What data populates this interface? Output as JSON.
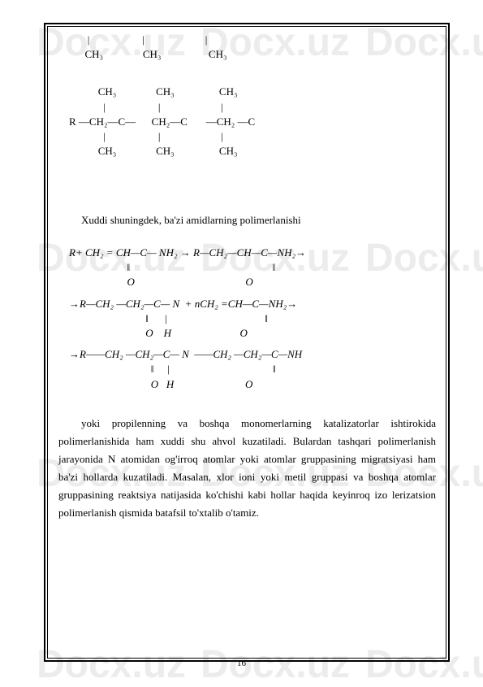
{
  "watermark_text": "Docx.uz",
  "chem_block_1": {
    "line1": "           |                    |                       |",
    "line2": "          CH₃               CH₃                  CH₃"
  },
  "chem_block_2": {
    "line1": "               CH₃               CH₃                 CH₃",
    "line2": "                 |                    |                       |",
    "line3": "    R —CH₂—C—      CH₂—C       —CH₂ —C",
    "line4": "                 |                    |                       |",
    "line5": "               CH₃               CH₃                 CH₃"
  },
  "section_title": "Xuddi shuningdek, ba'zi amidlarning polimerlanishi",
  "chem_block_3": {
    "line1": "    R+ CH₂ = CH—C— NH₂ → R—CH₂—CH—C—NH₂→",
    "line2": "                          ‖                                                      ‖",
    "line3": "                          O                                          O",
    "line4": "    →R—CH₂ —CH₂—C— N  + nCH₂ =CH—C—NH₂→",
    "line5": "                                 ‖      |                                     ‖",
    "line6": "                                 O    H                          O",
    "line7": "    →R——CH₂ —CH₂—C— N  ——CH₂ —CH₂—C—NH",
    "line8": "                                   ‖     |                                       ‖",
    "line9": "                                   O   H                           O"
  },
  "body_paragraph": "yoki  propilenning va boshqa monomerlarning katalizatorlar ishtirokida polimerlanishida ham xuddi shu ahvol kuzatiladi. Bulardan tashqari polimerlanish jarayonida N atomidan og'irroq atomlar yoki atomlar gruppasining migratsiyasi ham ba'zi hollarda kuzatiladi. Masalan, xlor ioni yoki metil gruppasi va boshqa atomlar gruppasining reaktsiya natijasida ko'chishi kabi hollar haqida keyinroq izo lerizatsion polimerlanish qismida batafsil to'xtalib o'tamiz.",
  "page_number": "16"
}
